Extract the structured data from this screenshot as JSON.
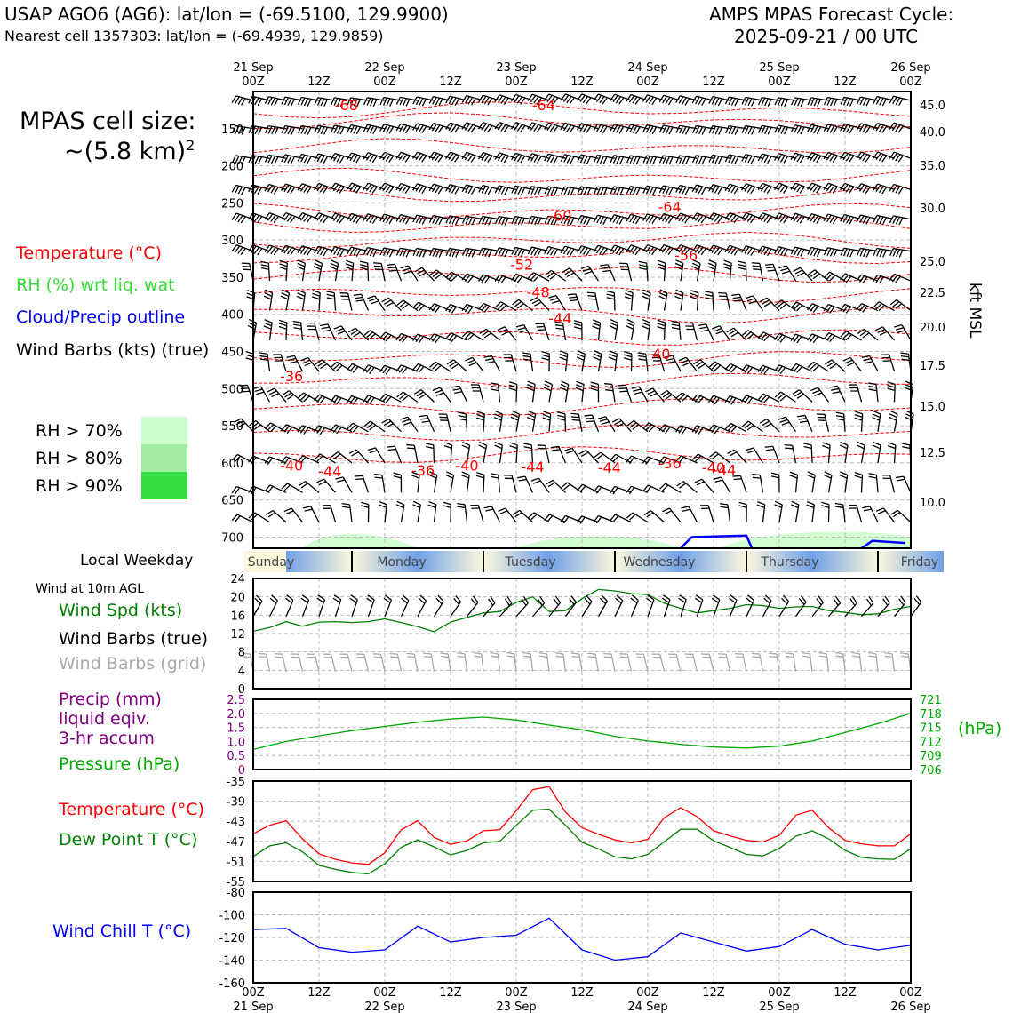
{
  "header": {
    "station": "USAP AGO6 (AG6): lat/lon = (-69.5100, 129.9900)",
    "nearest": "Nearest cell 1357303: lat/lon = (-69.4939, 129.9859)",
    "cycle_title": "AMPS MPAS Forecast Cycle:",
    "cycle_time": "2025-09-21 / 00 UTC"
  },
  "cell_size": {
    "line1": "MPAS cell size:",
    "line2": "~(5.8 km)",
    "sup": "2"
  },
  "legend": {
    "temperature": "Temperature (°C)",
    "rh": "RH (%) wrt liq. wat",
    "cloud": "Cloud/Precip outline",
    "barbs": "Wind Barbs (kts) (true)",
    "rh70": "RH > 70%",
    "rh80": "RH > 80%",
    "rh90": "RH > 90%"
  },
  "colors": {
    "temperature": "#ff0000",
    "rh": "#33dd33",
    "cloud": "#0000ff",
    "pressure": "#00aa00",
    "precip": "#800080",
    "dewpoint": "#008000",
    "windchill": "#0000ff",
    "rh70": "#ccffcc",
    "rh80": "#a3eba3",
    "rh90": "#33dd44",
    "grid_barbs": "#aaaaaa"
  },
  "time_axis": {
    "top_dates": [
      "21 Sep",
      "22 Sep",
      "23 Sep",
      "24 Sep",
      "25 Sep",
      "26 Sep"
    ],
    "ticks": [
      "00Z",
      "12Z",
      "00Z",
      "12Z",
      "00Z",
      "12Z",
      "00Z",
      "12Z",
      "00Z",
      "12Z",
      "00Z"
    ],
    "bottom_dates": [
      "21 Sep",
      "22 Sep",
      "23 Sep",
      "24 Sep",
      "25 Sep",
      "26 Sep"
    ]
  },
  "weekday": {
    "label": "Local Weekday",
    "days": [
      "Sunday",
      "Monday",
      "Tuesday",
      "Wednesday",
      "Thursday",
      "Friday"
    ]
  },
  "panel_labels": {
    "wind_title": "Wind at 10m AGL",
    "wind_spd": "Wind Spd (kts)",
    "wind_barbs_true": "Wind Barbs (true)",
    "wind_barbs_grid": "Wind Barbs (grid)",
    "precip1": "Precip (mm)",
    "precip2": "liquid eqiv.",
    "precip3": "3-hr accum",
    "pressure": "Pressure (hPa)",
    "hpa_unit": "(hPa)",
    "temperature": "Temperature (°C)",
    "dewpoint": "Dew Point T (°C)",
    "windchill": "Wind Chill T (°C)",
    "kft": "kft MSL"
  },
  "chart_data": [
    {
      "type": "contour",
      "name": "cross-section",
      "y_left_ticks": [
        150,
        200,
        250,
        300,
        350,
        400,
        450,
        500,
        550,
        600,
        650,
        700
      ],
      "y_right_ticks": [
        "45.0",
        "40.0",
        "35.0",
        "30.0",
        "25.0",
        "22.5",
        "20.0",
        "17.5",
        "15.0",
        "12.5",
        "10.0"
      ],
      "temperature_labels": [
        {
          "t": 17,
          "p": 118,
          "text": "-68"
        },
        {
          "t": 53,
          "p": 118,
          "text": "-64"
        },
        {
          "t": 76,
          "p": 255,
          "text": "-64"
        },
        {
          "t": 56,
          "p": 267,
          "text": "-60"
        },
        {
          "t": 79,
          "p": 320,
          "text": "-56"
        },
        {
          "t": 49,
          "p": 333,
          "text": "-52"
        },
        {
          "t": 52,
          "p": 370,
          "text": "-48"
        },
        {
          "t": 56,
          "p": 405,
          "text": "-44"
        },
        {
          "t": 74,
          "p": 453,
          "text": "-40"
        },
        {
          "t": 7,
          "p": 483,
          "text": "-36"
        },
        {
          "t": 7,
          "p": 603,
          "text": "-40"
        },
        {
          "t": 14,
          "p": 611,
          "text": "-44"
        },
        {
          "t": 31,
          "p": 610,
          "text": "-36"
        },
        {
          "t": 39,
          "p": 603,
          "text": "-40"
        },
        {
          "t": 51,
          "p": 605,
          "text": "-44"
        },
        {
          "t": 65,
          "p": 606,
          "text": "-44"
        },
        {
          "t": 76,
          "p": 600,
          "text": "-36"
        },
        {
          "t": 84,
          "p": 606,
          "text": "-40"
        },
        {
          "t": 86,
          "p": 609,
          "text": "-44"
        }
      ],
      "wind_levels_hpa": [
        112,
        150,
        190,
        232,
        272,
        315,
        355,
        395,
        435,
        477,
        518,
        558,
        600,
        640,
        680
      ]
    },
    {
      "type": "line",
      "name": "wind speed 10m",
      "ylim": [
        0,
        24
      ],
      "yticks": [
        0,
        4,
        8,
        12,
        16,
        20,
        24
      ],
      "x": [
        0,
        3,
        6,
        9,
        12,
        15,
        18,
        21,
        24,
        27,
        30,
        33,
        36,
        39,
        42,
        45,
        48,
        51,
        54,
        57,
        60,
        63,
        66,
        69,
        72,
        75,
        78,
        81,
        84,
        87,
        90,
        93,
        96,
        99,
        102,
        105,
        108,
        111,
        114,
        117,
        120
      ],
      "series": [
        {
          "values": [
            12.5,
            13.3,
            14.6,
            13.6,
            14.5,
            14.6,
            14.4,
            14.6,
            15.2,
            14.4,
            13.5,
            12.4,
            14.5,
            15.5,
            16.5,
            16.8,
            18.8,
            20,
            16.8,
            17,
            19.6,
            21.6,
            21.3,
            20.7,
            20.5,
            18.6,
            17.5,
            16.5,
            17,
            17.5,
            18.3,
            18.1,
            17.5,
            17.8,
            17.9,
            17,
            16.6,
            16.1,
            16.3,
            17.3,
            17.9
          ]
        }
      ]
    },
    {
      "type": "line",
      "name": "precip and pressure",
      "ylim_left": [
        0,
        2.5
      ],
      "yticks_left": [
        "0",
        "0.5",
        "1.0",
        "1.5",
        "2.0",
        "2.5"
      ],
      "ylim_right": [
        706,
        721
      ],
      "yticks_right": [
        706,
        709,
        712,
        715,
        718,
        721
      ],
      "x": [
        0,
        6,
        12,
        18,
        24,
        30,
        36,
        42,
        48,
        54,
        60,
        66,
        72,
        78,
        84,
        90,
        96,
        102,
        108,
        114,
        120
      ],
      "series": [
        {
          "name": "Pressure",
          "values": [
            710.3,
            712.0,
            713.2,
            714.3,
            715.2,
            716.1,
            716.8,
            717.2,
            716.6,
            715.5,
            714.5,
            713.1,
            712.1,
            711.4,
            710.8,
            710.6,
            711.0,
            712.1,
            713.9,
            715.8,
            718.0
          ]
        }
      ]
    },
    {
      "type": "line",
      "name": "temperature and dew point",
      "ylim": [
        -55,
        -35
      ],
      "yticks": [
        -35,
        -39,
        -43,
        -47,
        -51,
        -55
      ],
      "x": [
        0,
        3,
        6,
        9,
        12,
        15,
        18,
        21,
        24,
        27,
        30,
        33,
        36,
        39,
        42,
        45,
        48,
        51,
        54,
        57,
        60,
        63,
        66,
        69,
        72,
        75,
        78,
        81,
        84,
        87,
        90,
        93,
        96,
        99,
        102,
        105,
        108,
        111,
        114,
        117,
        120
      ],
      "series": [
        {
          "name": "Temperature",
          "values": [
            -45.5,
            -43.8,
            -42.9,
            -46.5,
            -49.5,
            -50.6,
            -51.3,
            -51.6,
            -49.3,
            -44.7,
            -42.9,
            -46.2,
            -47.6,
            -46.9,
            -44.9,
            -44.7,
            -40.9,
            -36.7,
            -36.1,
            -41.2,
            -44.3,
            -45.6,
            -46.7,
            -47.3,
            -46.6,
            -42.3,
            -40.3,
            -42.1,
            -44.9,
            -45.9,
            -46.8,
            -47.1,
            -45.8,
            -41.8,
            -40.8,
            -44.3,
            -46.8,
            -47.5,
            -47.9,
            -47.9,
            -45.5
          ]
        },
        {
          "name": "Dew Point",
          "values": [
            -50,
            -47.9,
            -47.3,
            -49.1,
            -51.8,
            -52.6,
            -53.2,
            -53.5,
            -51.5,
            -48.2,
            -46.7,
            -48.1,
            -49.7,
            -48.8,
            -47.3,
            -47,
            -43.8,
            -40.8,
            -40.6,
            -43.8,
            -47.2,
            -48.5,
            -50.1,
            -50.5,
            -49.6,
            -47.1,
            -44.6,
            -44.6,
            -46.9,
            -48.2,
            -49.6,
            -49.9,
            -48.4,
            -46,
            -44.9,
            -46.5,
            -48.8,
            -50.2,
            -50.5,
            -50.6,
            -48.5
          ]
        }
      ]
    },
    {
      "type": "line",
      "name": "wind chill",
      "ylim": [
        -160,
        -80
      ],
      "yticks": [
        -80,
        -100,
        -120,
        -140,
        -160
      ],
      "x": [
        0,
        6,
        12,
        18,
        24,
        30,
        36,
        42,
        48,
        54,
        60,
        66,
        72,
        78,
        84,
        90,
        96,
        102,
        108,
        114,
        120
      ],
      "series": [
        {
          "name": "Wind Chill",
          "values": [
            -113,
            -112,
            -129,
            -133,
            -131,
            -110,
            -124,
            -120,
            -118,
            -103,
            -131,
            -140,
            -137,
            -116,
            -124,
            -132,
            -128,
            -113,
            -126,
            -131,
            -127
          ]
        }
      ]
    }
  ]
}
